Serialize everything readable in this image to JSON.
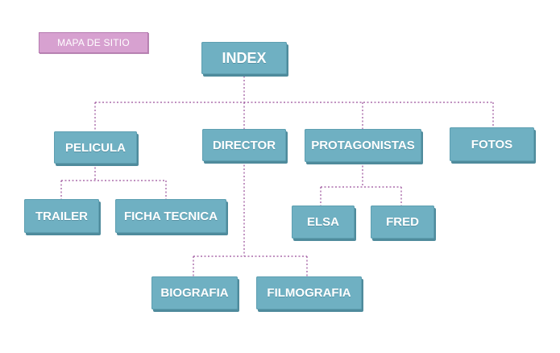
{
  "tag_label": "MAPA DE SITIO",
  "nodes": {
    "index": "INDEX",
    "pelicula": "PELICULA",
    "director": "DIRECTOR",
    "protagonistas": "PROTAGONISTAS",
    "fotos": "FOTOS",
    "trailer": "TRAILER",
    "ficha_tecnica": "FICHA TECNICA",
    "elsa": "ELSA",
    "fred": "FRED",
    "biografia": "BIOGRAFIA",
    "filmografia": "FILMOGRAFIA"
  },
  "colors": {
    "node_fill": "#6fb0c2",
    "node_shadow": "#4f8b9c",
    "connector": "#9a4f9a",
    "tag_fill": "#d7a1d0"
  }
}
